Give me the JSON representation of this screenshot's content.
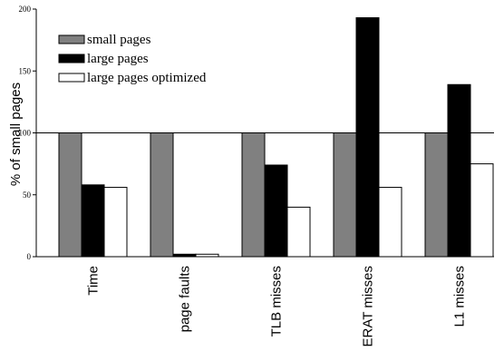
{
  "chart_data": {
    "type": "bar",
    "title": "",
    "xlabel": "",
    "ylabel": "% of small pages",
    "ylim": [
      0,
      200
    ],
    "yticks": [
      0,
      50,
      100,
      150,
      200
    ],
    "reference_line": 100,
    "grid": false,
    "legend_position": "top-left",
    "categories": [
      "Time",
      "page faults",
      "TLB misses",
      "ERAT misses",
      "L1 misses"
    ],
    "series": [
      {
        "name": "small pages",
        "color": "#808080",
        "values": [
          100,
          100,
          100,
          100,
          100
        ]
      },
      {
        "name": "large pages",
        "color": "#000000",
        "values": [
          58,
          2,
          74,
          193,
          139
        ]
      },
      {
        "name": "large pages optimized",
        "color": "#ffffff",
        "values": [
          56,
          2,
          40,
          56,
          75
        ]
      }
    ]
  }
}
